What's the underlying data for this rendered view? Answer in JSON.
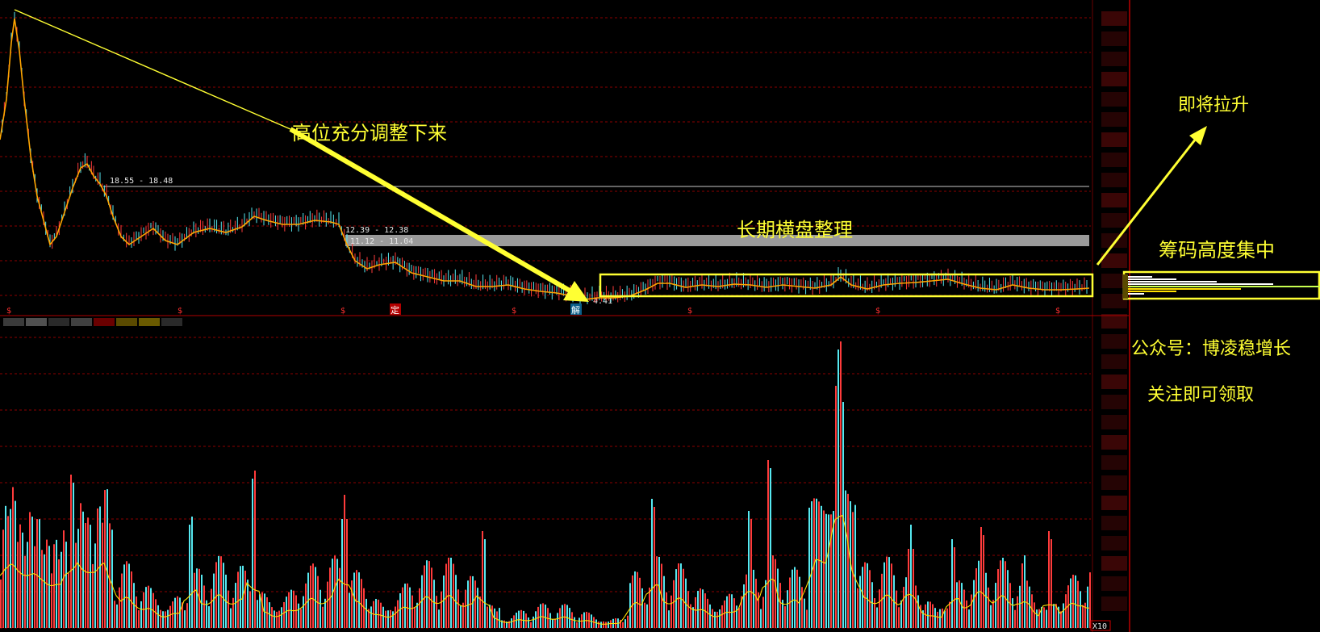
{
  "chart_data": [
    {
      "type": "candlestick",
      "panel": "price",
      "price_levels_drawn": [
        "18.55 - 18.48",
        "12.39 - 12.38",
        "11.12 - 11.04"
      ],
      "low_marker": "4.41",
      "event_markers": [
        "定",
        "解"
      ],
      "grid": true,
      "colors": {
        "up": "#ff3b3b",
        "down": "#56e8f0",
        "ma": "#ffa500",
        "grid": "#8b0000"
      }
    },
    {
      "type": "bar",
      "panel": "volume",
      "scale_label": "X10",
      "grid": true,
      "colors": {
        "up": "#ff3b3b",
        "down": "#56e8f0",
        "ma": "#ffe000"
      }
    }
  ],
  "annotations": {
    "decline": "高位充分调整下来",
    "consolidation": "长期横盘整理",
    "rise": "即将拉升",
    "chips": "筹码高度集中",
    "wechat": "公众号：博凌稳增长",
    "follow": "关注即可领取"
  }
}
